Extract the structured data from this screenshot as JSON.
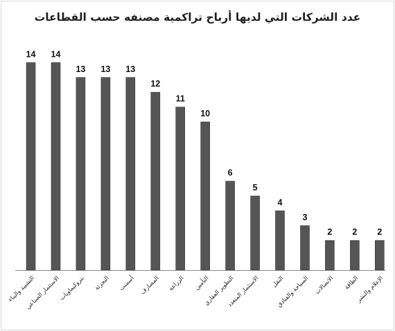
{
  "chart_data": {
    "type": "bar",
    "title": "عدد الشركات التي لديها أرباح تراكمية مصنفه حسب القطاعات",
    "categories": [
      "التشييد والبناء",
      "الاستثمار الصناعي",
      "بتروكيماويات",
      "التجزئة",
      "أسمنت",
      "المصارف",
      "الزراعة",
      "التأمين",
      "التطوير العقاري",
      "الاستثمار المتعدد",
      "النقل",
      "السياحة والفنادق",
      "الاتصالات",
      "الطاقة",
      "الإعلام والنشر"
    ],
    "values": [
      14,
      14,
      13,
      13,
      13,
      12,
      11,
      10,
      6,
      5,
      4,
      3,
      2,
      2,
      2
    ],
    "ylim": [
      0,
      14
    ],
    "grid": false,
    "legend": "none",
    "colors": {
      "bar": "#555555",
      "bar_edge": "#3a3a3a",
      "border": "#d9d9d9",
      "axis": "#8a8a8a"
    }
  }
}
